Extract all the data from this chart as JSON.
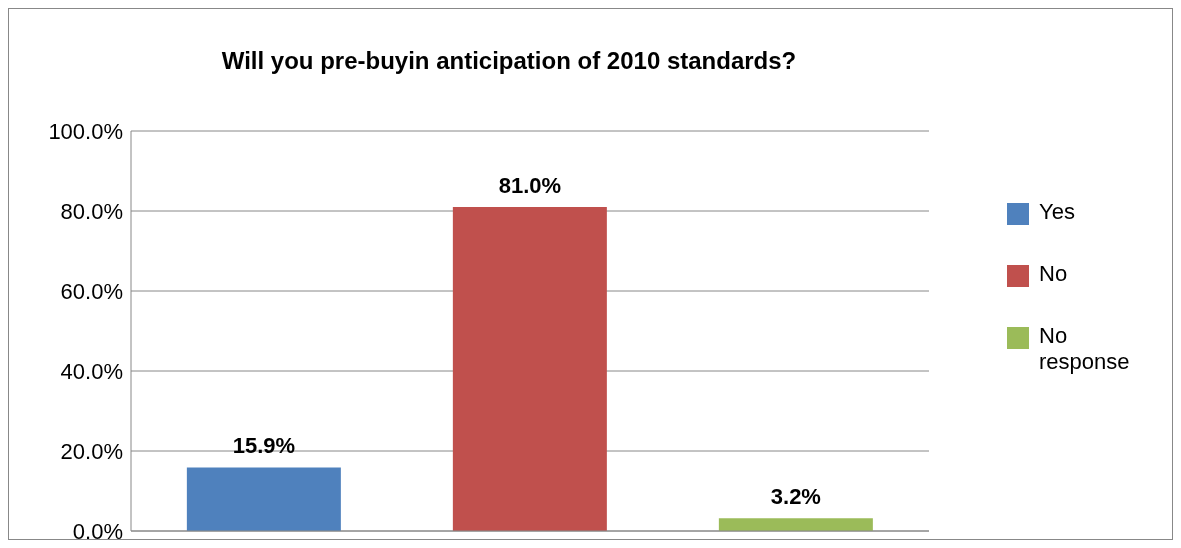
{
  "chart_data": {
    "type": "bar",
    "title": "Will you pre-buyin anticipation of 2010 standards?",
    "categories": [
      null,
      null,
      null
    ],
    "series": [
      {
        "name": "Yes",
        "color": "#4f81bd",
        "values": [
          15.9,
          null,
          null
        ],
        "value_labels": [
          "15.9%",
          null,
          null
        ]
      },
      {
        "name": "No",
        "color": "#c0504d",
        "values": [
          null,
          81.0,
          null
        ],
        "value_labels": [
          null,
          "81.0%",
          null
        ]
      },
      {
        "name": "No response",
        "color": "#9bbb59",
        "values": [
          null,
          null,
          3.2
        ],
        "value_labels": [
          null,
          null,
          "3.2%"
        ]
      }
    ],
    "ylim": [
      0,
      100
    ],
    "yticks": [
      {
        "value": 0,
        "label": "0.0%"
      },
      {
        "value": 20,
        "label": "20.0%"
      },
      {
        "value": 40,
        "label": "40.0%"
      },
      {
        "value": 60,
        "label": "60.0%"
      },
      {
        "value": 80,
        "label": "80.0%"
      },
      {
        "value": 100,
        "label": "100.0%"
      }
    ],
    "grid": "y",
    "legend": "right"
  }
}
